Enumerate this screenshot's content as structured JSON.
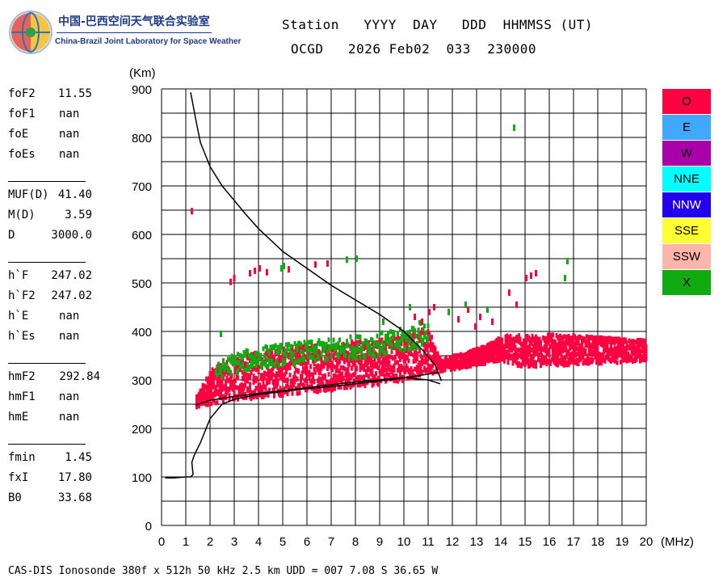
{
  "logo": {
    "cn_text": "中国-巴西空间天气联合实验室",
    "en_text": "China-Brazil Joint Laboratory for Space Weather"
  },
  "header": {
    "line1": "Station   YYYY  DAY   DDD  HHMMSS (UT)",
    "line2": "OCGD   2026 Feb02  033  230000"
  },
  "params": [
    {
      "name": "foF2",
      "value": "11.55"
    },
    {
      "name": "foF1",
      "value": "nan"
    },
    {
      "name": "foE",
      "value": "nan"
    },
    {
      "name": "foEs",
      "value": "nan"
    },
    {
      "name": "MUF(D)",
      "value": "41.40"
    },
    {
      "name": "M(D)",
      "value": "3.59"
    },
    {
      "name": "D",
      "value": "3000.0"
    },
    {
      "name": "h`F",
      "value": "247.02"
    },
    {
      "name": "h`F2",
      "value": "247.02"
    },
    {
      "name": "h`E",
      "value": "nan"
    },
    {
      "name": "h`Es",
      "value": "nan"
    },
    {
      "name": "hmF2",
      "value": "292.84"
    },
    {
      "name": "hmF1",
      "value": "nan"
    },
    {
      "name": "hmE",
      "value": "nan"
    },
    {
      "name": "fmin",
      "value": "1.45"
    },
    {
      "name": "fxI",
      "value": "17.80"
    },
    {
      "name": "B0",
      "value": "33.68"
    }
  ],
  "legend": [
    {
      "label": "O",
      "color": "#ff0040",
      "text_color": "#000000"
    },
    {
      "label": "E",
      "color": "#40a8ff",
      "text_color": "#000000"
    },
    {
      "label": "W",
      "color": "#aa00aa",
      "text_color": "#000000"
    },
    {
      "label": "NNE",
      "color": "#00ffff",
      "text_color": "#000000"
    },
    {
      "label": "NNW",
      "color": "#2200ee",
      "text_color": "#ffffff"
    },
    {
      "label": "SSE",
      "color": "#ffff33",
      "text_color": "#000000"
    },
    {
      "label": "SSW",
      "color": "#ffb6a8",
      "text_color": "#000000"
    },
    {
      "label": "X",
      "color": "#11aa11",
      "text_color": "#000000"
    }
  ],
  "footer": "CAS-DIS Ionosonde 380f x 512h 50 kHz 2.5 km UDD = 007 7.08 S 36.65 W",
  "chart_data": {
    "type": "scatter",
    "title": "",
    "xlabel": "(MHz)",
    "ylabel": "(Km)",
    "xlim": [
      0,
      20
    ],
    "ylim": [
      0,
      900
    ],
    "xticks": [
      0,
      1,
      2,
      3,
      4,
      5,
      6,
      7,
      8,
      9,
      10,
      11,
      12,
      13,
      14,
      15,
      16,
      17,
      18,
      19,
      20
    ],
    "yticks": [
      0,
      100,
      200,
      300,
      400,
      500,
      600,
      700,
      800,
      900
    ],
    "grid": true,
    "o_color": "#ff0040",
    "x_color": "#11aa11",
    "o_trace": {
      "x": [
        1.4,
        1.6,
        1.8,
        2.0,
        2.5,
        3.0,
        3.5,
        4.0,
        4.5,
        5.0,
        5.5,
        6.0,
        6.5,
        7.0,
        7.5,
        8.0,
        8.5,
        9.0,
        9.5,
        10.0,
        10.5,
        11.0,
        11.5,
        12.0,
        12.5,
        13.0,
        13.5,
        14.0,
        14.5,
        15.0,
        15.5,
        16.0,
        16.5,
        17.0,
        17.5,
        18.0,
        18.5,
        19.0,
        19.5,
        20.0
      ],
      "y_low": [
        240,
        245,
        248,
        250,
        255,
        258,
        260,
        263,
        266,
        268,
        271,
        274,
        276,
        279,
        282,
        285,
        288,
        291,
        295,
        299,
        305,
        312,
        318,
        322,
        326,
        331,
        336,
        340,
        330,
        326,
        328,
        332,
        330,
        332,
        333,
        334,
        335,
        336,
        337,
        338
      ],
      "y_high": [
        265,
        285,
        305,
        320,
        335,
        345,
        352,
        358,
        362,
        366,
        368,
        372,
        374,
        376,
        378,
        380,
        382,
        385,
        390,
        395,
        405,
        400,
        340,
        350,
        355,
        365,
        375,
        390,
        395,
        390,
        392,
        394,
        390,
        392,
        390,
        388,
        386,
        384,
        383,
        382
      ]
    },
    "x_trace": {
      "x": [
        2.2,
        2.6,
        3.0,
        3.4,
        3.8,
        4.2,
        4.6,
        5.0,
        5.4,
        5.8,
        6.2,
        6.6,
        7.0,
        7.4,
        7.8,
        8.2,
        8.6,
        9.0,
        9.4,
        9.8,
        10.2,
        10.6,
        11.0
      ],
      "y_low": [
        300,
        310,
        315,
        318,
        322,
        325,
        328,
        330,
        332,
        334,
        336,
        338,
        340,
        342,
        344,
        346,
        348,
        350,
        352,
        354,
        360,
        365,
        370
      ],
      "y_high": [
        330,
        345,
        355,
        360,
        365,
        370,
        372,
        374,
        376,
        378,
        380,
        382,
        385,
        388,
        390,
        392,
        395,
        398,
        400,
        405,
        410,
        420,
        425
      ]
    },
    "scattered_o": [
      [
        1.2,
        648
      ],
      [
        2.8,
        502
      ],
      [
        2.95,
        510
      ],
      [
        3.6,
        520
      ],
      [
        3.8,
        525
      ],
      [
        4.0,
        530
      ],
      [
        4.3,
        522
      ],
      [
        5.2,
        528
      ],
      [
        6.3,
        538
      ],
      [
        6.8,
        540
      ],
      [
        12.2,
        425
      ],
      [
        12.6,
        445
      ],
      [
        13.1,
        430
      ],
      [
        14.3,
        480
      ],
      [
        14.6,
        455
      ],
      [
        15.0,
        510
      ],
      [
        15.2,
        515
      ],
      [
        15.4,
        520
      ],
      [
        10.4,
        430
      ],
      [
        10.7,
        420
      ],
      [
        11.0,
        440
      ],
      [
        11.2,
        450
      ],
      [
        12.9,
        410
      ],
      [
        13.6,
        420
      ]
    ],
    "scattered_x": [
      [
        14.5,
        820
      ],
      [
        16.7,
        545
      ],
      [
        16.6,
        510
      ],
      [
        8.0,
        550
      ],
      [
        7.6,
        548
      ],
      [
        5.0,
        535
      ],
      [
        4.9,
        530
      ],
      [
        2.4,
        395
      ],
      [
        11.8,
        440
      ],
      [
        12.5,
        455
      ],
      [
        13.4,
        445
      ],
      [
        10.2,
        450
      ],
      [
        9.1,
        420
      ]
    ],
    "virtual_height_curve": {
      "x": [
        0.15,
        0.5,
        1.0,
        1.2,
        1.3,
        1.25,
        1.35,
        1.6,
        2.0,
        2.5,
        3.0,
        4.0,
        5.0,
        6.0,
        7.0,
        8.0,
        9.0,
        10.0,
        11.0,
        11.4
      ],
      "y": [
        98,
        98,
        100,
        100,
        105,
        130,
        145,
        170,
        220,
        250,
        260,
        270,
        276,
        282,
        286,
        292,
        298,
        304,
        312,
        316
      ]
    },
    "profile_curve": {
      "x": [
        1.2,
        1.4,
        1.6,
        2.0,
        2.5,
        3.0,
        3.5,
        4.0,
        5.0,
        6.0,
        7.0,
        8.0,
        9.0,
        10.0,
        10.8,
        11.3,
        11.55
      ],
      "y": [
        893,
        840,
        790,
        740,
        700,
        670,
        640,
        612,
        565,
        530,
        495,
        465,
        435,
        400,
        360,
        330,
        298
      ]
    },
    "profile_curve2": {
      "x": [
        1.4,
        2.0,
        3.0,
        4.0,
        5.0,
        6.0,
        7.0,
        8.0,
        9.0,
        10.0,
        11.0,
        11.5
      ],
      "y": [
        248,
        258,
        266,
        272,
        278,
        284,
        290,
        296,
        300,
        305,
        300,
        292
      ]
    }
  }
}
